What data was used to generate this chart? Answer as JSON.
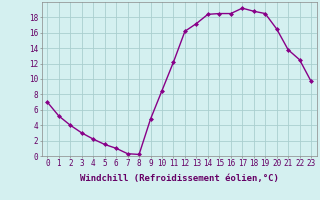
{
  "x": [
    0,
    1,
    2,
    3,
    4,
    5,
    6,
    7,
    8,
    9,
    10,
    11,
    12,
    13,
    14,
    15,
    16,
    17,
    18,
    19,
    20,
    21,
    22,
    23
  ],
  "y": [
    7.0,
    5.2,
    4.0,
    3.0,
    2.2,
    1.5,
    1.0,
    0.3,
    0.2,
    4.8,
    8.5,
    12.2,
    16.2,
    17.2,
    18.4,
    18.5,
    18.5,
    19.2,
    18.8,
    18.5,
    16.5,
    13.8,
    12.5,
    9.7
  ],
  "line_color": "#880088",
  "marker": "D",
  "marker_size": 2,
  "linewidth": 1.0,
  "xlabel": "Windchill (Refroidissement éolien,°C)",
  "xlabel_fontsize": 6.5,
  "bg_color": "#d4f0f0",
  "grid_color": "#aacfcf",
  "ylim": [
    0,
    20
  ],
  "xlim": [
    -0.5,
    23.5
  ],
  "yticks": [
    0,
    2,
    4,
    6,
    8,
    10,
    12,
    14,
    16,
    18
  ],
  "xticks": [
    0,
    1,
    2,
    3,
    4,
    5,
    6,
    7,
    8,
    9,
    10,
    11,
    12,
    13,
    14,
    15,
    16,
    17,
    18,
    19,
    20,
    21,
    22,
    23
  ],
  "tick_fontsize": 5.5,
  "spine_color": "#888888"
}
